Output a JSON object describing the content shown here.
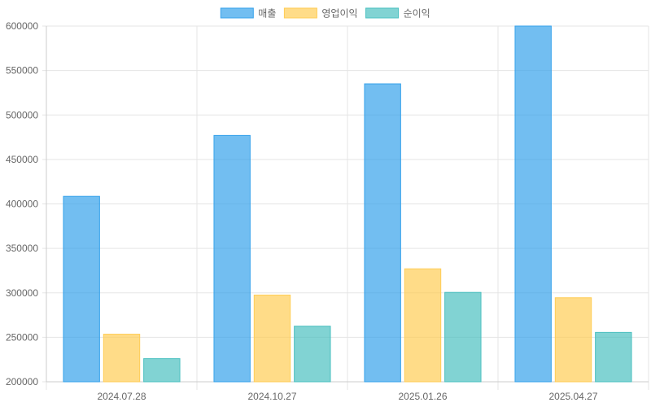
{
  "chart_data": {
    "type": "bar",
    "categories": [
      "2024.07.28",
      "2024.10.27",
      "2025.01.26",
      "2025.04.27"
    ],
    "series": [
      {
        "name": "매출",
        "values": [
          408500,
          477000,
          535000,
          600000
        ],
        "color": "#36A2EB"
      },
      {
        "name": "영업이익",
        "values": [
          253500,
          297500,
          327000,
          294500
        ],
        "color": "#FFCD56"
      },
      {
        "name": "순이익",
        "values": [
          226000,
          262500,
          300500,
          255500
        ],
        "color": "#4BC0C0"
      }
    ],
    "ylim": [
      200000,
      600000
    ],
    "yticks": [
      200000,
      250000,
      300000,
      350000,
      400000,
      450000,
      500000,
      550000,
      600000
    ],
    "grid": true,
    "legend_position": "top-center"
  }
}
